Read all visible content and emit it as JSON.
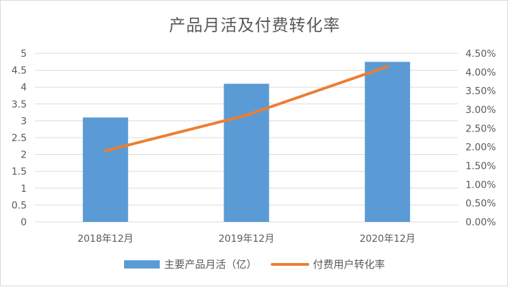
{
  "chart_data": {
    "type": "bar",
    "title": "产品月活及付费转化率",
    "categories": [
      "2018年12月",
      "2019年12月",
      "2020年12月"
    ],
    "series": [
      {
        "name": "主要产品月活（亿）",
        "type": "bar",
        "axis": "left",
        "color": "#5b9bd5",
        "values": [
          3.1,
          4.1,
          4.75
        ]
      },
      {
        "name": "付费用户转化率",
        "type": "line",
        "axis": "right",
        "color": "#ed7d31",
        "values": [
          1.9,
          2.85,
          4.15
        ]
      }
    ],
    "y_left": {
      "min": 0,
      "max": 5,
      "step": 0.5,
      "ticks": [
        "0",
        "0.5",
        "1",
        "1.5",
        "2",
        "2.5",
        "3",
        "3.5",
        "4",
        "4.5",
        "5"
      ]
    },
    "y_right": {
      "min": 0,
      "max": 4.5,
      "step": 0.5,
      "ticks": [
        "0.00%",
        "0.50%",
        "1.00%",
        "1.50%",
        "2.00%",
        "2.50%",
        "3.00%",
        "3.50%",
        "4.00%",
        "4.50%"
      ]
    },
    "grid": true,
    "legend_position": "bottom"
  }
}
